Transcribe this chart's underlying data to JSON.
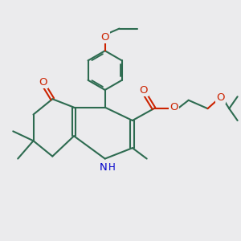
{
  "background_color": "#ebebed",
  "bond_color": "#2d6b50",
  "heteroatom_color_O": "#cc2200",
  "heteroatom_color_N": "#0000cc",
  "line_width": 1.5,
  "font_size_atom": 8.5,
  "figsize": [
    3.0,
    3.0
  ],
  "dpi": 100,
  "xlim": [
    0,
    10
  ],
  "ylim": [
    0,
    10
  ]
}
